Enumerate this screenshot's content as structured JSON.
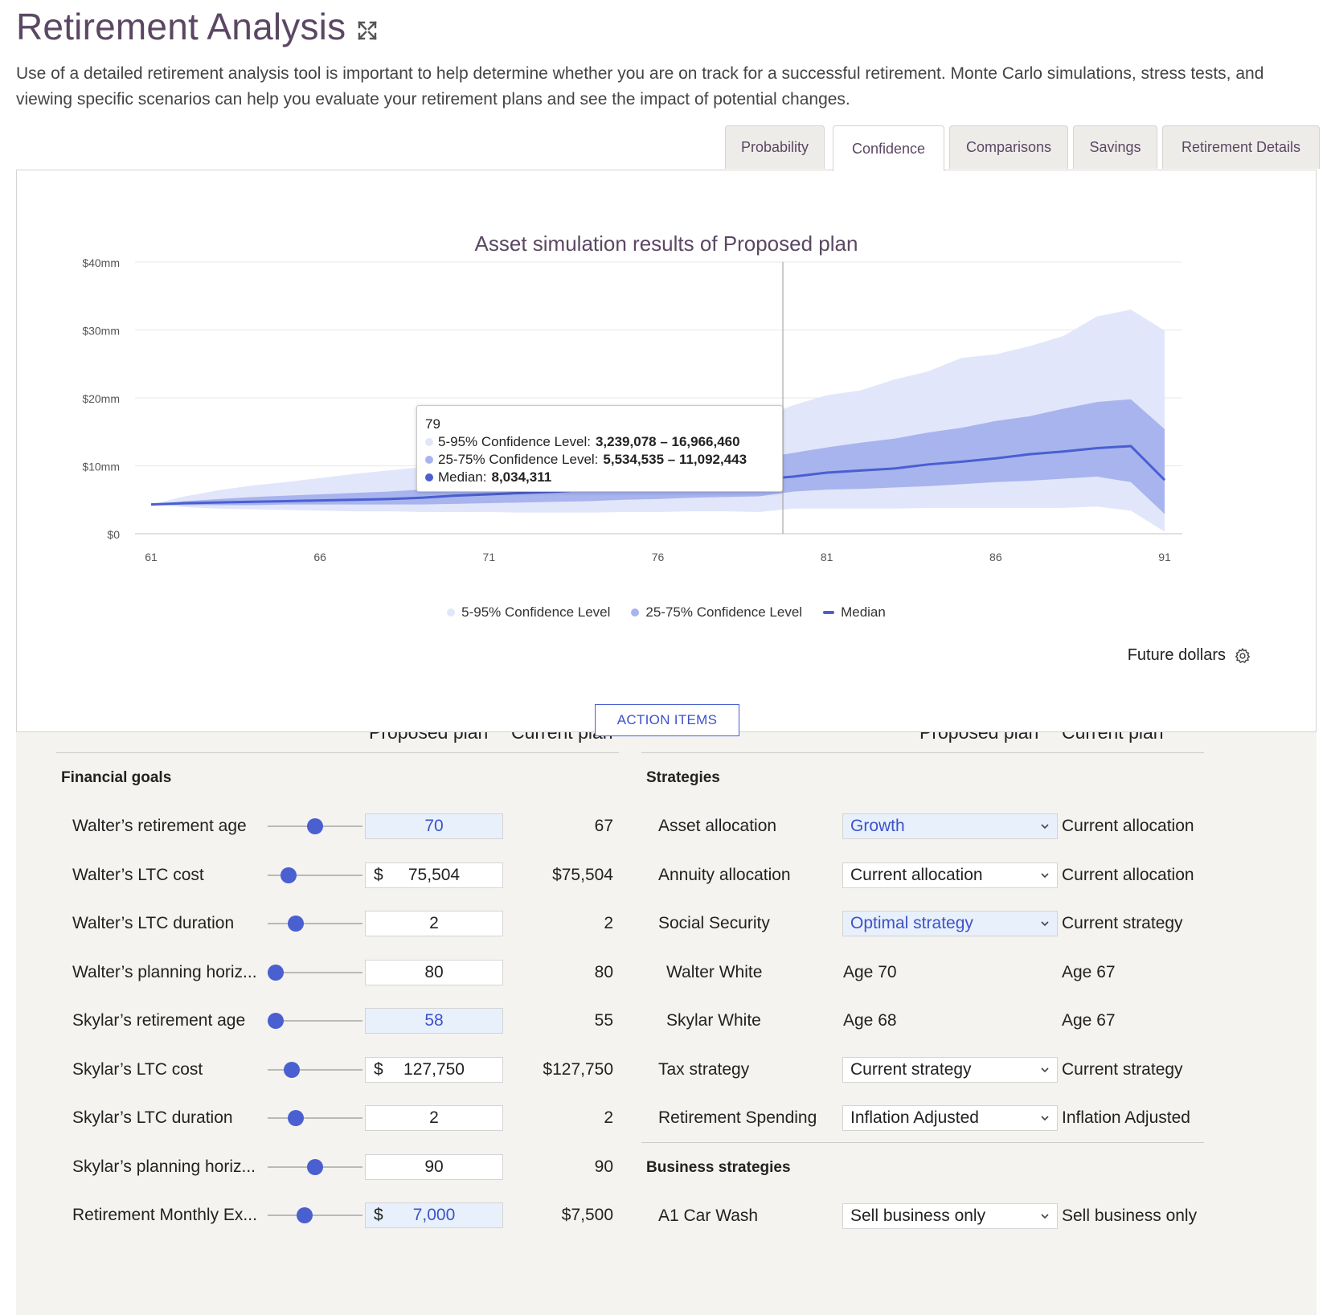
{
  "page": {
    "title": "Retirement Analysis",
    "intro": "Use of a detailed retirement analysis tool is important to help determine whether you are on track for a successful retirement. Monte Carlo simulations, stress tests, and viewing specific scenarios can help you evaluate your retirement plans and see the impact of potential changes."
  },
  "tabs": [
    {
      "label": "Probability",
      "active": false
    },
    {
      "label": "Confidence",
      "active": true
    },
    {
      "label": "Comparisons",
      "active": false
    },
    {
      "label": "Savings",
      "active": false
    },
    {
      "label": "Retirement Details",
      "active": false
    }
  ],
  "chart_data": {
    "type": "area",
    "title": "Asset simulation results of Proposed plan",
    "x": [
      61,
      62,
      63,
      64,
      65,
      66,
      67,
      68,
      69,
      70,
      71,
      72,
      73,
      74,
      75,
      76,
      77,
      78,
      79,
      80,
      81,
      82,
      83,
      84,
      85,
      86,
      87,
      88,
      89,
      90,
      91
    ],
    "x_ticks": [
      "61",
      "66",
      "71",
      "76",
      "81",
      "86",
      "91"
    ],
    "y_ticks": [
      "$0",
      "$10mm",
      "$20mm",
      "$30mm",
      "$40mm"
    ],
    "ylim": [
      0,
      40
    ],
    "y_unit": "mm",
    "series": [
      {
        "name": "5-95% Confidence Level",
        "color": "#e2e6fa",
        "low": [
          4.3,
          3.9,
          3.7,
          3.6,
          3.5,
          3.4,
          3.3,
          3.3,
          3.2,
          3.2,
          3.2,
          3.1,
          3.1,
          3.1,
          3.2,
          3.2,
          3.3,
          3.3,
          3.2,
          3.7,
          3.7,
          3.7,
          3.7,
          3.8,
          3.8,
          3.8,
          3.8,
          3.8,
          4.0,
          3.4,
          0.3
        ],
        "high": [
          4.3,
          5.5,
          6.4,
          7.1,
          7.6,
          8.2,
          8.8,
          9.3,
          9.8,
          10.2,
          10.6,
          11.3,
          11.8,
          12.5,
          13.3,
          14.0,
          15.1,
          15.8,
          17.0,
          18.9,
          20.4,
          21.1,
          22.7,
          23.9,
          25.9,
          26.4,
          27.6,
          29.1,
          32.0,
          33.0,
          29.9
        ]
      },
      {
        "name": "25-75% Confidence Level",
        "color": "#a8b4ee",
        "low": [
          4.3,
          4.2,
          4.2,
          4.2,
          4.3,
          4.3,
          4.3,
          4.3,
          4.3,
          4.4,
          4.5,
          4.6,
          4.7,
          4.8,
          5.0,
          5.1,
          5.3,
          5.4,
          5.5,
          6.2,
          6.5,
          6.6,
          6.8,
          7.0,
          7.3,
          7.6,
          7.8,
          8.1,
          8.4,
          7.6,
          2.9
        ],
        "high": [
          4.3,
          4.8,
          5.1,
          5.4,
          5.6,
          5.8,
          6.0,
          6.2,
          6.5,
          6.8,
          7.1,
          7.4,
          7.6,
          8.0,
          8.3,
          8.8,
          9.2,
          9.8,
          11.1,
          11.9,
          12.7,
          13.4,
          14.0,
          14.9,
          15.6,
          16.6,
          17.3,
          18.4,
          19.4,
          19.8,
          15.4
        ]
      },
      {
        "name": "Median",
        "color": "#4a5fd0",
        "values": [
          4.3,
          4.5,
          4.6,
          4.7,
          4.8,
          4.9,
          5.0,
          5.1,
          5.3,
          5.6,
          5.8,
          6.0,
          6.2,
          6.5,
          6.8,
          7.1,
          7.4,
          7.8,
          8.0,
          8.4,
          9.0,
          9.3,
          9.6,
          10.2,
          10.6,
          11.1,
          11.7,
          12.1,
          12.6,
          12.9,
          7.9
        ]
      }
    ],
    "hover_x": 79
  },
  "tooltip": {
    "age": "79",
    "band_outer_label": "5-95% Confidence Level:",
    "band_outer_value": "3,239,078 – 16,966,460",
    "band_inner_label": "25-75% Confidence Level:",
    "band_inner_value": "5,534,535 – 11,092,443",
    "median_label": "Median:",
    "median_value": "8,034,311"
  },
  "legend": {
    "outer": "5-95% Confidence Level",
    "inner": "25-75% Confidence Level",
    "median": "Median"
  },
  "future_dollars": "Future dollars",
  "action_items": "ACTION ITEMS",
  "left_table": {
    "col_proposed": "Proposed plan",
    "col_current": "Current plan",
    "section": "Financial goals",
    "rows": [
      {
        "label": "Walter’s retirement age",
        "currency": "",
        "proposed": "70",
        "current": "67",
        "highlight": true,
        "slider": 0.5
      },
      {
        "label": "Walter’s LTC cost",
        "currency": "$",
        "proposed": "75,504",
        "current": "$75,504",
        "highlight": false,
        "slider": 0.16
      },
      {
        "label": "Walter’s LTC duration",
        "currency": "",
        "proposed": "2",
        "current": "2",
        "highlight": false,
        "slider": 0.25
      },
      {
        "label": "Walter’s planning horiz...",
        "currency": "",
        "proposed": "80",
        "current": "80",
        "highlight": false,
        "slider": 0.0
      },
      {
        "label": "Skylar’s retirement age",
        "currency": "",
        "proposed": "58",
        "current": "55",
        "highlight": true,
        "slider": 0.0
      },
      {
        "label": "Skylar’s LTC cost",
        "currency": "$",
        "proposed": "127,750",
        "current": "$127,750",
        "highlight": false,
        "slider": 0.2
      },
      {
        "label": "Skylar’s LTC duration",
        "currency": "",
        "proposed": "2",
        "current": "2",
        "highlight": false,
        "slider": 0.25
      },
      {
        "label": "Skylar’s planning horiz...",
        "currency": "",
        "proposed": "90",
        "current": "90",
        "highlight": false,
        "slider": 0.5
      },
      {
        "label": "Retirement Monthly Ex...",
        "currency": "$",
        "proposed": "7,000",
        "current": "$7,500",
        "highlight": true,
        "slider": 0.37
      }
    ]
  },
  "right_table": {
    "col_proposed": "Proposed plan",
    "col_current": "Current plan",
    "section": "Strategies",
    "rows": [
      {
        "label": "Asset allocation",
        "type": "select",
        "proposed": "Growth",
        "current": "Current allocation",
        "highlight": true
      },
      {
        "label": "Annuity allocation",
        "type": "select",
        "proposed": "Current allocation",
        "current": "Current allocation",
        "highlight": false
      },
      {
        "label": "Social Security",
        "type": "select",
        "proposed": "Optimal strategy",
        "current": "Current strategy",
        "highlight": true
      },
      {
        "label": "Walter White",
        "type": "text",
        "proposed": "Age 70",
        "current": "Age 67",
        "highlight": false
      },
      {
        "label": "Skylar White",
        "type": "text",
        "proposed": "Age 68",
        "current": "Age 67",
        "highlight": false
      },
      {
        "label": "Tax strategy",
        "type": "select",
        "proposed": "Current strategy",
        "current": "Current strategy",
        "highlight": false
      },
      {
        "label": "Retirement Spending",
        "type": "select",
        "proposed": "Inflation Adjusted",
        "current": "Inflation Adjusted",
        "highlight": false
      }
    ],
    "section2": "Business strategies",
    "rows2": [
      {
        "label": "A1 Car Wash",
        "type": "select",
        "proposed": "Sell business only",
        "current": "Sell business only",
        "highlight": false
      }
    ]
  }
}
